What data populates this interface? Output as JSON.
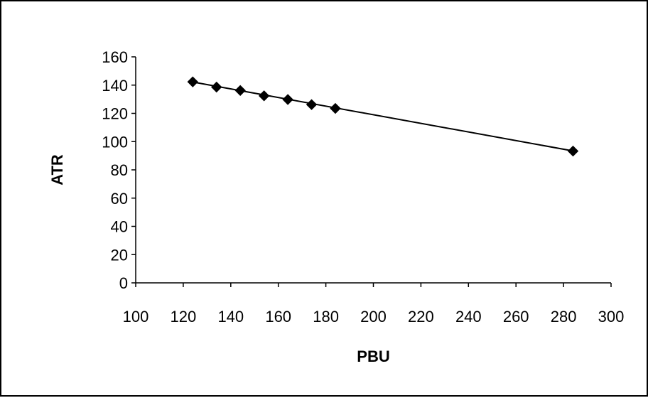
{
  "chart_data": {
    "type": "scatter",
    "title": "",
    "xlabel": "PBU",
    "ylabel": "ATR",
    "xlim": [
      100,
      300
    ],
    "ylim": [
      0,
      160
    ],
    "x_ticks": [
      100,
      120,
      140,
      160,
      180,
      200,
      220,
      240,
      260,
      280,
      300
    ],
    "y_ticks": [
      0,
      20,
      40,
      60,
      80,
      100,
      120,
      140,
      160
    ],
    "grid": false,
    "legend": "none",
    "marker": "diamond",
    "colors": {
      "marker": "#000000",
      "line": "#000000",
      "frame": "#000000"
    },
    "series": [
      {
        "x": [
          124,
          134,
          144,
          154,
          164,
          174,
          184,
          284
        ],
        "y": [
          142.3,
          138.6,
          136.2,
          132.4,
          129.8,
          126.2,
          123.5,
          93.3
        ]
      }
    ],
    "trendline": {
      "type": "linear",
      "x": [
        124,
        284
      ],
      "y": [
        142.2,
        93.4
      ]
    }
  }
}
